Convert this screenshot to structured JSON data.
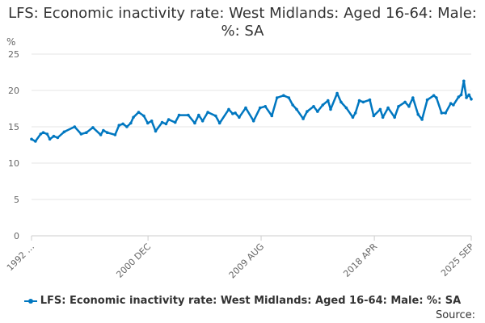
{
  "chart_data": {
    "type": "line",
    "title": "LFS: Economic inactivity rate: West Midlands: Aged 16-64: Male: %: SA",
    "ylabel": "%",
    "xlabel": "",
    "ylim": [
      0,
      25
    ],
    "xlim": [
      1992.0,
      2025.67
    ],
    "yticks": [
      0,
      5,
      10,
      15,
      20,
      25
    ],
    "xticks": [
      {
        "x": 1992.0,
        "label": "1992 …"
      },
      {
        "x": 2000.92,
        "label": "2000 DEC"
      },
      {
        "x": 2009.58,
        "label": "2009 AUG"
      },
      {
        "x": 2018.25,
        "label": "2018 APR"
      },
      {
        "x": 2025.67,
        "label": "2025 SEP"
      }
    ],
    "grid": true,
    "legend_position": "bottom",
    "series": [
      {
        "name": "LFS: Economic inactivity rate: West Midlands: Aged 16-64: Male: %: SA",
        "color": "#0077c0",
        "x": [
          1992.0,
          1992.3,
          1992.7,
          1992.9,
          1993.2,
          1993.4,
          1993.7,
          1994.0,
          1994.5,
          1995.3,
          1995.8,
          1996.2,
          1996.7,
          1997.3,
          1997.5,
          1997.8,
          1998.4,
          1998.7,
          1999.0,
          1999.3,
          1999.6,
          1999.8,
          2000.2,
          2000.6,
          2000.9,
          2001.2,
          2001.5,
          2002.0,
          2002.3,
          2002.5,
          2003.0,
          2003.3,
          2004.0,
          2004.5,
          2004.8,
          2005.1,
          2005.5,
          2006.1,
          2006.4,
          2007.1,
          2007.4,
          2007.6,
          2007.9,
          2008.4,
          2009.0,
          2009.5,
          2009.9,
          2010.4,
          2010.8,
          2011.3,
          2011.7,
          2012.0,
          2012.3,
          2012.8,
          2013.1,
          2013.6,
          2013.9,
          2014.3,
          2014.7,
          2014.9,
          2015.4,
          2015.7,
          2016.1,
          2016.6,
          2016.8,
          2017.1,
          2017.4,
          2017.9,
          2018.2,
          2018.7,
          2018.9,
          2019.3,
          2019.8,
          2020.1,
          2020.6,
          2020.9,
          2021.2,
          2021.6,
          2021.9,
          2022.3,
          2022.8,
          2023.0,
          2023.4,
          2023.7,
          2024.1,
          2024.3,
          2024.7,
          2024.9,
          2025.1,
          2025.3,
          2025.5,
          2025.67
        ],
        "y": [
          13.3,
          13.0,
          14.0,
          14.2,
          14.0,
          13.3,
          13.7,
          13.5,
          14.3,
          15.0,
          14.0,
          14.2,
          14.9,
          13.9,
          14.5,
          14.2,
          13.9,
          15.2,
          15.4,
          15.0,
          15.5,
          16.3,
          17.0,
          16.5,
          15.5,
          15.8,
          14.4,
          15.6,
          15.4,
          16.0,
          15.6,
          16.6,
          16.6,
          15.5,
          16.6,
          15.8,
          17.0,
          16.5,
          15.5,
          17.4,
          16.8,
          16.9,
          16.3,
          17.6,
          15.8,
          17.6,
          17.8,
          16.5,
          19.0,
          19.3,
          19.0,
          18.0,
          17.4,
          16.1,
          17.1,
          17.8,
          17.1,
          18.0,
          18.6,
          17.4,
          19.6,
          18.4,
          17.6,
          16.3,
          16.9,
          18.6,
          18.4,
          18.7,
          16.5,
          17.4,
          16.3,
          17.6,
          16.3,
          17.8,
          18.4,
          17.8,
          19.0,
          16.7,
          16.0,
          18.7,
          19.3,
          19.0,
          16.9,
          16.9,
          18.2,
          18.0,
          19.1,
          19.4,
          21.3,
          19.0,
          19.4,
          18.8
        ]
      }
    ]
  },
  "source_label": "Source:"
}
